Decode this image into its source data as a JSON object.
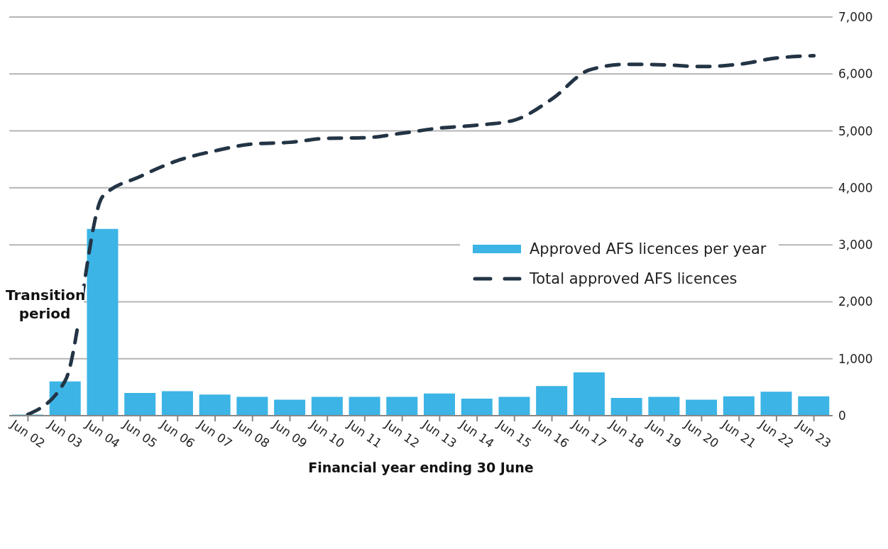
{
  "chart_data": {
    "type": "bar",
    "xlabel": "Financial year ending 30 June",
    "categories": [
      "Jun 02",
      "Jun 03",
      "Jun 04",
      "Jun 05",
      "Jun 06",
      "Jun 07",
      "Jun 08",
      "Jun 09",
      "Jun 10",
      "Jun 11",
      "Jun 12",
      "Jun 13",
      "Jun 14",
      "Jun 15",
      "Jun 16",
      "Jun 17",
      "Jun 18",
      "Jun 19",
      "Jun 20",
      "Jun 21",
      "Jun 22",
      "Jun 23"
    ],
    "series": [
      {
        "name": "Approved AFS licences per year",
        "color": "#3cb4e5",
        "values": [
          20,
          600,
          3280,
          400,
          430,
          370,
          330,
          280,
          330,
          330,
          330,
          390,
          300,
          330,
          520,
          760,
          310,
          330,
          280,
          340,
          420,
          340
        ]
      },
      {
        "name": "Total approved AFS licences",
        "type": "line",
        "color": "#233445",
        "line_style": "dashed",
        "values": [
          20,
          620,
          3850,
          4200,
          4480,
          4650,
          4770,
          4800,
          4870,
          4880,
          4960,
          5050,
          5100,
          5190,
          5560,
          6070,
          6170,
          6160,
          6130,
          6170,
          6280,
          6320
        ]
      }
    ],
    "ylim": [
      0,
      7000
    ],
    "yticks": [
      {
        "value": 0,
        "label": "0"
      },
      {
        "value": 1000,
        "label": "1,000"
      },
      {
        "value": 2000,
        "label": "2,000"
      },
      {
        "value": 3000,
        "label": "3,000"
      },
      {
        "value": 4000,
        "label": "4,000"
      },
      {
        "value": 5000,
        "label": "5,000"
      },
      {
        "value": 6000,
        "label": "6,000"
      },
      {
        "value": 7000,
        "label": "7,000"
      }
    ],
    "grid": "y",
    "legend": "right",
    "marker": "none",
    "annotations": [
      "Transition period"
    ]
  }
}
